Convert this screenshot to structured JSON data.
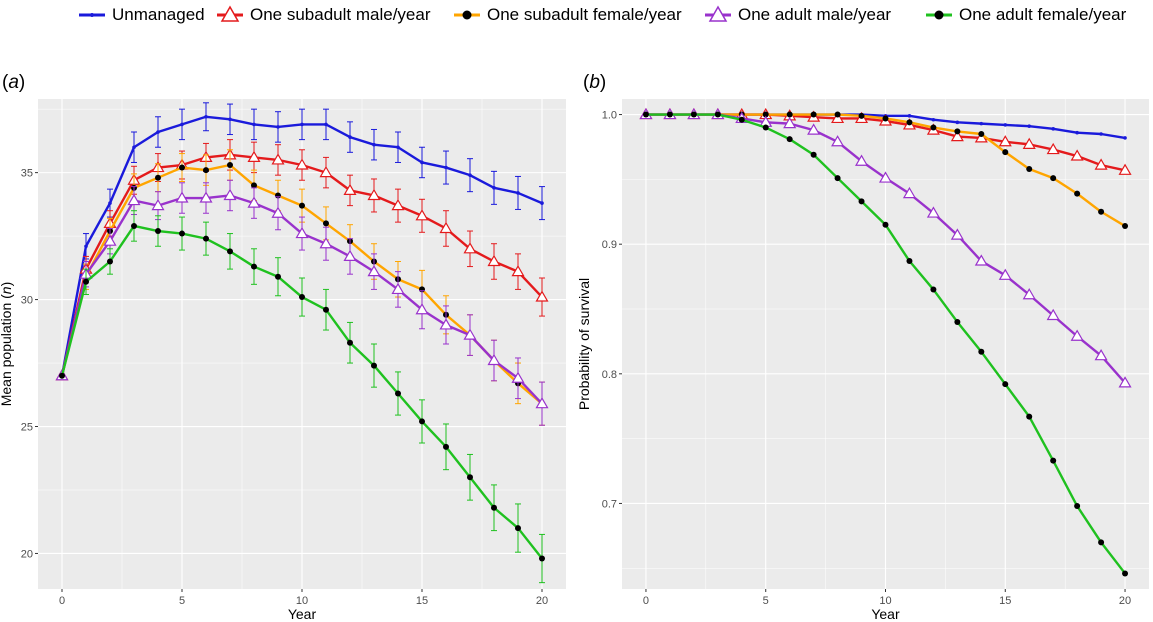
{
  "legend": {
    "items": [
      {
        "label": "Unmanaged",
        "color": "#1a1adb",
        "shape": "point"
      },
      {
        "label": "One subadult male/year",
        "color": "#e41a1c",
        "shape": "open-triangle"
      },
      {
        "label": "One subadult female/year",
        "color": "#ffa500",
        "shape": "dot"
      },
      {
        "label": "One adult male/year",
        "color": "#9932cc",
        "shape": "open-triangle"
      },
      {
        "label": "One adult female/year",
        "color": "#1fc11f",
        "shape": "dot"
      }
    ]
  },
  "panels": {
    "a": {
      "tag_open": "(",
      "tag_letter": "a",
      "tag_close": ")"
    },
    "b": {
      "tag_open": "(",
      "tag_letter": "b",
      "tag_close": ")"
    }
  },
  "chart_data": [
    {
      "type": "line",
      "xlabel": "Year",
      "ylabel_prefix": "Mean population (",
      "ylabel_italic": "n",
      "ylabel_suffix": ")",
      "xlim": [
        -1,
        21
      ],
      "ylim": [
        18.6,
        37.9
      ],
      "xticks": [
        0,
        5,
        10,
        15,
        20
      ],
      "yticks": [
        20,
        25,
        30,
        35
      ],
      "grid": true,
      "x": [
        0,
        1,
        2,
        3,
        4,
        5,
        6,
        7,
        8,
        9,
        10,
        11,
        12,
        13,
        14,
        15,
        16,
        17,
        18,
        19,
        20
      ],
      "series": [
        {
          "name": "Unmanaged",
          "color": "#1a1adb",
          "marker": "none",
          "values": [
            27.0,
            32.1,
            33.8,
            36.0,
            36.6,
            36.9,
            37.2,
            37.1,
            36.9,
            36.8,
            36.9,
            36.9,
            36.4,
            36.1,
            36.0,
            35.4,
            35.2,
            34.9,
            34.4,
            34.2,
            33.8
          ],
          "errors": [
            0.0,
            0.5,
            0.55,
            0.6,
            0.6,
            0.6,
            0.55,
            0.6,
            0.6,
            0.6,
            0.6,
            0.6,
            0.6,
            0.6,
            0.6,
            0.6,
            0.65,
            0.65,
            0.65,
            0.65,
            0.65
          ]
        },
        {
          "name": "One subadult male/year",
          "color": "#e41a1c",
          "marker": "open-triangle",
          "values": [
            27.0,
            31.2,
            33.0,
            34.7,
            35.2,
            35.3,
            35.6,
            35.7,
            35.6,
            35.5,
            35.3,
            35.0,
            34.3,
            34.1,
            33.7,
            33.3,
            32.8,
            32.0,
            31.5,
            31.1,
            30.1
          ],
          "errors": [
            0.0,
            0.5,
            0.5,
            0.55,
            0.55,
            0.55,
            0.55,
            0.6,
            0.6,
            0.6,
            0.6,
            0.6,
            0.6,
            0.65,
            0.65,
            0.65,
            0.7,
            0.7,
            0.7,
            0.7,
            0.75
          ]
        },
        {
          "name": "One subadult female/year",
          "color": "#ffa500",
          "marker": "dot",
          "values": [
            27.0,
            30.9,
            32.7,
            34.4,
            34.8,
            35.2,
            35.1,
            35.3,
            34.5,
            34.1,
            33.7,
            33.0,
            32.3,
            31.5,
            30.8,
            30.4,
            29.4,
            28.6,
            27.6,
            26.7,
            25.9
          ],
          "errors": [
            0.0,
            0.5,
            0.5,
            0.55,
            0.55,
            0.55,
            0.6,
            0.6,
            0.6,
            0.6,
            0.65,
            0.65,
            0.65,
            0.7,
            0.7,
            0.75,
            0.75,
            0.8,
            0.8,
            0.8,
            0.85
          ]
        },
        {
          "name": "One adult male/year",
          "color": "#9932cc",
          "marker": "open-triangle",
          "values": [
            27.0,
            31.0,
            32.3,
            33.9,
            33.7,
            34.0,
            34.0,
            34.1,
            33.8,
            33.4,
            32.6,
            32.2,
            31.7,
            31.1,
            30.4,
            29.6,
            29.0,
            28.6,
            27.6,
            26.9,
            25.9
          ],
          "errors": [
            0.0,
            0.5,
            0.5,
            0.55,
            0.55,
            0.6,
            0.6,
            0.6,
            0.6,
            0.65,
            0.65,
            0.65,
            0.7,
            0.7,
            0.7,
            0.75,
            0.75,
            0.8,
            0.8,
            0.8,
            0.85
          ]
        },
        {
          "name": "One adult female/year",
          "color": "#1fc11f",
          "marker": "dot",
          "values": [
            27.0,
            30.7,
            31.5,
            32.9,
            32.7,
            32.6,
            32.4,
            31.9,
            31.3,
            30.9,
            30.1,
            29.6,
            28.3,
            27.4,
            26.3,
            25.2,
            24.2,
            23.0,
            21.8,
            21.0,
            19.8
          ],
          "errors": [
            0.0,
            0.5,
            0.5,
            0.6,
            0.6,
            0.65,
            0.65,
            0.7,
            0.7,
            0.75,
            0.75,
            0.8,
            0.8,
            0.85,
            0.85,
            0.85,
            0.9,
            0.9,
            0.9,
            0.95,
            0.95
          ]
        }
      ]
    },
    {
      "type": "line",
      "xlabel": "Year",
      "ylabel": "Probability of survival",
      "xlim": [
        -1,
        21
      ],
      "ylim": [
        0.634,
        1.012
      ],
      "xticks": [
        0,
        5,
        10,
        15,
        20
      ],
      "yticks": [
        0.7,
        0.8,
        0.9,
        1.0
      ],
      "ytick_labels": [
        "0.7",
        "0.8",
        "0.9",
        "1.0"
      ],
      "grid": true,
      "x": [
        0,
        1,
        2,
        3,
        4,
        5,
        6,
        7,
        8,
        9,
        10,
        11,
        12,
        13,
        14,
        15,
        16,
        17,
        18,
        19,
        20
      ],
      "series": [
        {
          "name": "Unmanaged",
          "color": "#1a1adb",
          "marker": "none",
          "values": [
            1.0,
            1.0,
            1.0,
            1.0,
            1.0,
            1.0,
            1.0,
            1.0,
            1.0,
            1.0,
            0.999,
            0.999,
            0.996,
            0.994,
            0.993,
            0.992,
            0.991,
            0.989,
            0.986,
            0.985,
            0.982
          ]
        },
        {
          "name": "One subadult male/year",
          "color": "#e41a1c",
          "marker": "open-triangle",
          "values": [
            1.0,
            1.0,
            1.0,
            1.0,
            1.0,
            1.0,
            0.999,
            0.998,
            0.997,
            0.997,
            0.995,
            0.992,
            0.988,
            0.983,
            0.982,
            0.979,
            0.977,
            0.973,
            0.968,
            0.961,
            0.957
          ]
        },
        {
          "name": "One subadult female/year",
          "color": "#ffa500",
          "marker": "dot",
          "values": [
            1.0,
            1.0,
            1.0,
            1.0,
            1.0,
            1.0,
            1.0,
            1.0,
            1.0,
            0.999,
            0.997,
            0.994,
            0.99,
            0.987,
            0.985,
            0.971,
            0.958,
            0.951,
            0.939,
            0.925,
            0.914
          ]
        },
        {
          "name": "One adult male/year",
          "color": "#9932cc",
          "marker": "open-triangle",
          "values": [
            1.0,
            1.0,
            1.0,
            1.0,
            0.997,
            0.994,
            0.993,
            0.988,
            0.979,
            0.964,
            0.951,
            0.939,
            0.924,
            0.907,
            0.887,
            0.876,
            0.861,
            0.845,
            0.829,
            0.814,
            0.793
          ]
        },
        {
          "name": "One adult female/year",
          "color": "#1fc11f",
          "marker": "dot",
          "values": [
            1.0,
            1.0,
            1.0,
            1.0,
            0.996,
            0.99,
            0.981,
            0.969,
            0.951,
            0.933,
            0.915,
            0.887,
            0.865,
            0.84,
            0.817,
            0.792,
            0.767,
            0.733,
            0.698,
            0.67,
            0.646
          ]
        }
      ]
    }
  ]
}
